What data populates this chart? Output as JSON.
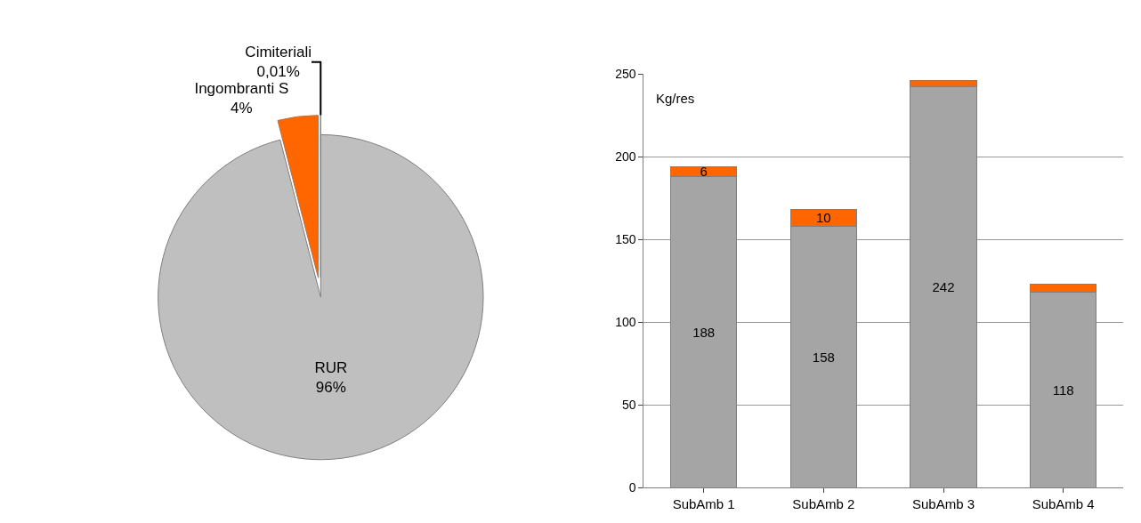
{
  "chart_data": [
    {
      "type": "pie",
      "categories": [
        "RUR",
        "Ingombranti S",
        "Cimiteriali"
      ],
      "values": [
        96,
        4,
        0.01
      ],
      "colors": [
        "#bfbfbf",
        "#ff6600",
        "#ff6600"
      ],
      "value_labels": [
        "96%",
        "4%",
        "0,01%"
      ]
    },
    {
      "type": "bar",
      "stacked": true,
      "categories": [
        "SubAmb 1",
        "SubAmb 2",
        "SubAmb 3",
        "SubAmb 4"
      ],
      "ylabel": "Kg/res",
      "ylim": [
        0,
        250
      ],
      "yticks": [
        0,
        50,
        100,
        150,
        200,
        250
      ],
      "grid": "y",
      "series": [
        {
          "color": "#a5a5a5",
          "values": [
            188,
            158,
            242,
            118
          ],
          "value_labels": [
            "188",
            "158",
            "242",
            "118"
          ]
        },
        {
          "color": "#ff6600",
          "values": [
            6,
            10,
            4,
            5
          ],
          "value_labels": [
            "6",
            "10",
            null,
            null
          ]
        }
      ]
    }
  ]
}
